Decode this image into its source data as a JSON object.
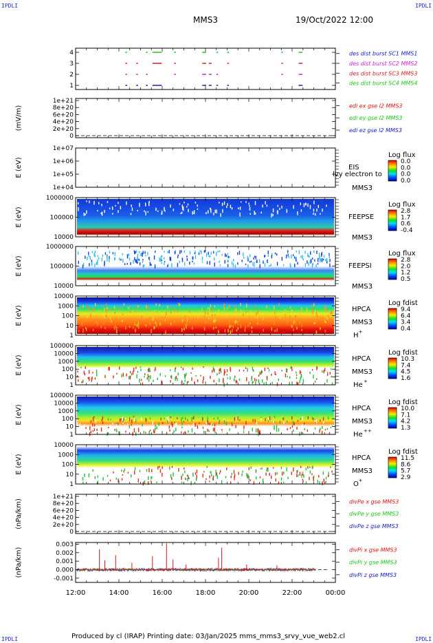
{
  "header": {
    "corner_label": "IPDLI",
    "title": "MMS3",
    "datetime": "19/Oct/2022 12:00"
  },
  "footer": {
    "text": "Produced by cl (IRAP)   Printing date: 03/Jan/2025   mms_mms3_srvy_vue_web2.cl"
  },
  "colors": {
    "mms1": "#1a1acc",
    "mms2": "#d81fd8",
    "mms3": "#d81f1f",
    "mms4": "#18c818",
    "x": "#e01010",
    "y": "#18c818",
    "z": "#1a1acc"
  },
  "chart_data": [
    {
      "type": "scatter",
      "panel": "burst-availability",
      "yticks": [
        "1",
        "2",
        "3",
        "4"
      ],
      "legend": [
        {
          "name": "des dist burst SC1 MMS1",
          "color": "#1a1acc"
        },
        {
          "name": "des dist burst SC2 MMS2",
          "color": "#d81fd8"
        },
        {
          "name": "des dist burst SC3 MMS3",
          "color": "#d81f1f"
        },
        {
          "name": "des dist burst SC4 MMS4",
          "color": "#18c818"
        }
      ],
      "intervals_hours": [
        [
          14.3,
          14.35
        ],
        [
          14.8,
          14.85
        ],
        [
          15.25,
          15.3
        ],
        [
          15.55,
          15.95
        ],
        [
          16.55,
          16.6
        ],
        [
          17.85,
          18.0
        ],
        [
          18.15,
          18.25
        ],
        [
          18.5,
          18.55
        ],
        [
          19.0,
          19.05
        ],
        [
          21.5,
          21.55
        ],
        [
          22.3,
          22.45
        ]
      ]
    },
    {
      "type": "line",
      "panel": "edi-e-field",
      "ylabel": "(mV/m)",
      "yticks": [
        "1e+21",
        "8e+20",
        "6e+20",
        "4e+20",
        "2e+20",
        "0"
      ],
      "legend": [
        {
          "name": "edi ex gse l2 MMS3",
          "color": "#e01010"
        },
        {
          "name": "edi ey gse l2 MMS3",
          "color": "#18c818"
        },
        {
          "name": "edi ez gse l2 MMS3",
          "color": "#1a1acc"
        }
      ]
    },
    {
      "type": "heatmap",
      "panel": "eis",
      "ylabel": "E (eV)",
      "yticks": [
        "1e+07",
        "1e+06",
        "1e+05",
        "1e+04"
      ],
      "instrument": "EIS",
      "spacecraft": "MMS3",
      "extra_text": "lvy electron to",
      "colorbar_title": "Log flux",
      "colorbar_ticks": [
        "0.0",
        "0.0",
        "0.0",
        "0.0"
      ]
    },
    {
      "type": "heatmap",
      "panel": "feepse",
      "ylabel": "E (eV)",
      "yticks": [
        "1000000",
        "100000",
        "10000"
      ],
      "instrument": "FEEPSE",
      "spacecraft": "MMS3",
      "colorbar_title": "Log flux",
      "colorbar_ticks": [
        "2.8",
        "1.7",
        "0.6",
        "-0.4"
      ]
    },
    {
      "type": "heatmap",
      "panel": "feepsi",
      "ylabel": "E (eV)",
      "yticks": [
        "1000000",
        "100000",
        "10000"
      ],
      "instrument": "FEEPSI",
      "spacecraft": "MMS3",
      "colorbar_title": "Log flux",
      "colorbar_ticks": [
        "2.8",
        "2.0",
        "1.2",
        "0.5"
      ]
    },
    {
      "type": "heatmap",
      "panel": "hpca-h",
      "ylabel": "E (eV)",
      "yticks": [
        "10000",
        "1000",
        "100",
        "10",
        "1"
      ],
      "instrument": "HPCA",
      "spacecraft": "MMS3",
      "species": "H",
      "species_sup": "+",
      "colorbar_title": "Log fdist",
      "colorbar_ticks": [
        "9.4",
        "6.4",
        "3.4",
        "0.4"
      ]
    },
    {
      "type": "heatmap",
      "panel": "hpca-he",
      "ylabel": "E (eV)",
      "yticks": [
        "100000",
        "10000",
        "1000",
        "100",
        "10",
        "1"
      ],
      "instrument": "HPCA",
      "spacecraft": "MMS3",
      "species": "He",
      "species_sup": "+",
      "colorbar_title": "Log fdist",
      "colorbar_ticks": [
        "10.3",
        "7.4",
        "4.5",
        "1.6"
      ]
    },
    {
      "type": "heatmap",
      "panel": "hpca-he2",
      "ylabel": "E (eV)",
      "yticks": [
        "100000",
        "10000",
        "1000",
        "100",
        "10",
        "1"
      ],
      "instrument": "HPCA",
      "spacecraft": "MMS3",
      "species": "He",
      "species_sup": "++",
      "colorbar_title": "Log fdist",
      "colorbar_ticks": [
        "10.0",
        "7.1",
        "4.2",
        "1.3"
      ]
    },
    {
      "type": "heatmap",
      "panel": "hpca-o",
      "ylabel": "E (eV)",
      "yticks": [
        "10000",
        "1000",
        "100",
        "10",
        "1"
      ],
      "instrument": "HPCA",
      "spacecraft": "MMS3",
      "species": "O",
      "species_sup": "+",
      "colorbar_title": "Log fdist",
      "colorbar_ticks": [
        "11.5",
        "8.6",
        "5.7",
        "2.9"
      ]
    },
    {
      "type": "line",
      "panel": "divpe",
      "ylabel": "(nPa/km)",
      "yticks": [
        "1e+21",
        "8e+20",
        "6e+20",
        "4e+20",
        "2e+20",
        "0"
      ],
      "legend": [
        {
          "name": "divPe x gse MMS3",
          "color": "#e01010"
        },
        {
          "name": "divPe y gse MMS3",
          "color": "#18c818"
        },
        {
          "name": "divPe z gse MMS3",
          "color": "#1a1acc"
        }
      ]
    },
    {
      "type": "line",
      "panel": "divpi",
      "ylabel": "(nPa/km)",
      "yticks": [
        "0.003",
        "0.002",
        "0.001",
        "0.000",
        "-0.001"
      ],
      "ylim": [
        -0.0015,
        0.0032
      ],
      "legend": [
        {
          "name": "divPi x gse MMS3",
          "color": "#e01010"
        },
        {
          "name": "divPi y gse MMS3",
          "color": "#18c818"
        },
        {
          "name": "divPi z gse MMS3",
          "color": "#1a1acc"
        }
      ],
      "spikes_hours": [
        [
          13.1,
          0.0024
        ],
        [
          13.35,
          0.0011
        ],
        [
          13.85,
          0.0017
        ],
        [
          14.6,
          0.0008
        ],
        [
          15.55,
          0.0016
        ],
        [
          16.2,
          0.0031
        ],
        [
          16.5,
          0.0012
        ],
        [
          17.1,
          0.0006
        ],
        [
          18.6,
          0.0014
        ],
        [
          18.75,
          0.0026
        ],
        [
          19.9,
          0.0006
        ],
        [
          21.3,
          0.0005
        ]
      ]
    }
  ],
  "time_axis": {
    "ticks": [
      "12:00",
      "14:00",
      "16:00",
      "18:00",
      "20:00",
      "22:00",
      "00:00"
    ],
    "range_hours": [
      12,
      24
    ]
  }
}
